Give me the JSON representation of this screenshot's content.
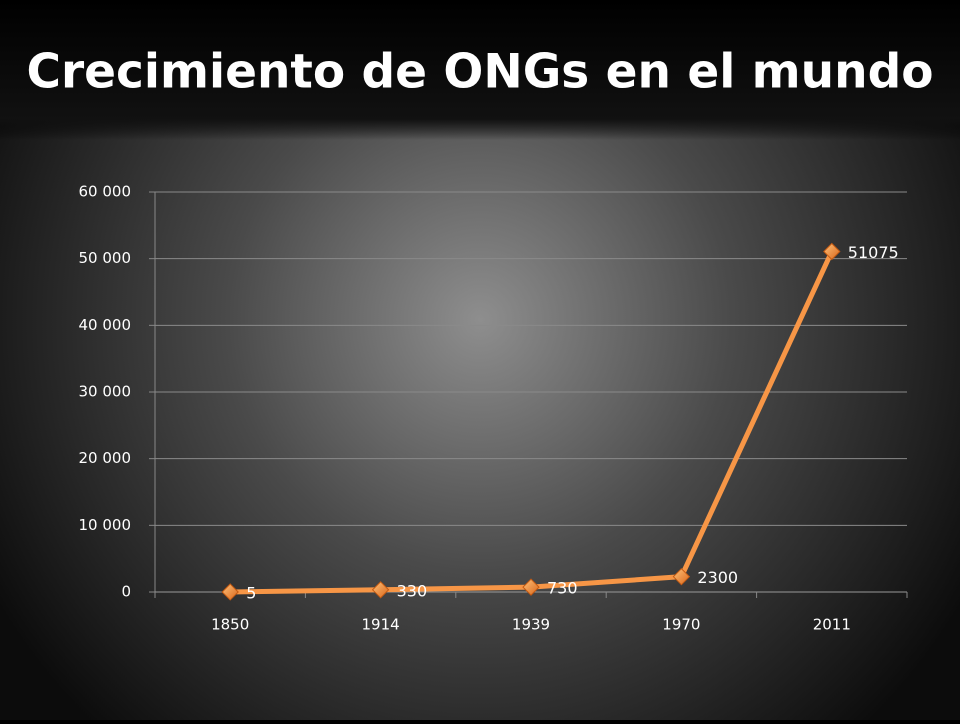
{
  "chart_data": {
    "type": "line",
    "title": "Crecimiento de ONGs en el mundo",
    "categories": [
      "1850",
      "1914",
      "1939",
      "1970",
      "2011"
    ],
    "values": [
      5,
      330,
      730,
      2300,
      51075
    ],
    "color": "#f79646",
    "ylim": [
      0,
      60000
    ],
    "yticks": [
      0,
      {
        "value": 10000,
        "label": "10 000"
      },
      {
        "value": 20000,
        "label": "20 000"
      },
      {
        "value": 30000,
        "label": "30 000"
      },
      {
        "value": 40000,
        "label": "40 000"
      },
      {
        "value": 50000,
        "label": "50 000"
      },
      {
        "value": 60000,
        "label": "60 000"
      }
    ],
    "grid": true
  }
}
